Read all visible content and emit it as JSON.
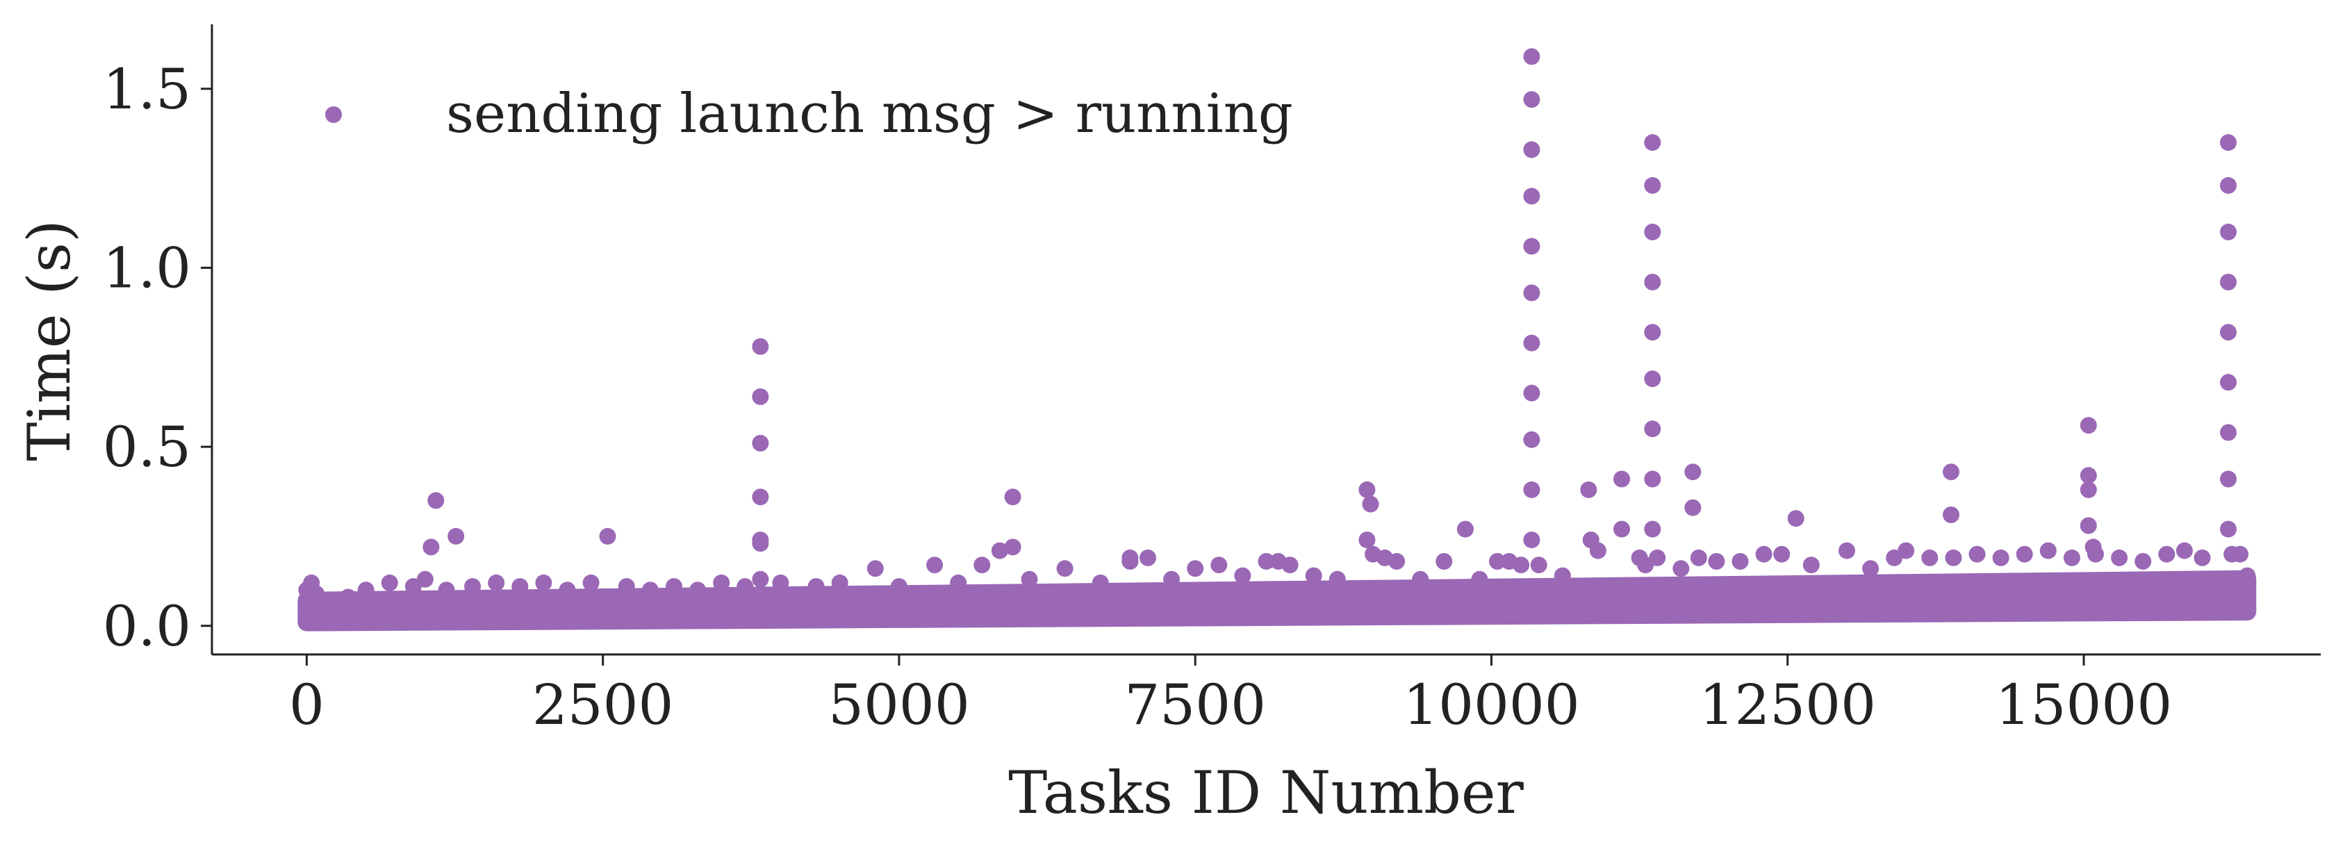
{
  "chart_data": {
    "type": "scatter",
    "xlabel": "Tasks ID Number",
    "ylabel": "Time (s)",
    "xlim": [
      -800,
      17000
    ],
    "ylim": [
      -0.08,
      1.68
    ],
    "xticks": [
      0,
      2500,
      5000,
      7500,
      10000,
      12500,
      15000
    ],
    "xtick_labels": [
      "0",
      "2500",
      "5000",
      "7500",
      "10000",
      "12500",
      "15000"
    ],
    "yticks": [
      0.0,
      0.5,
      1.0,
      1.5
    ],
    "ytick_labels": [
      "0.0",
      "0.5",
      "1.0",
      "1.5"
    ],
    "grid": false,
    "legend_position": "top-left",
    "series": [
      {
        "name": "sending launch msg > running",
        "color": "#9a68b5",
        "band": {
          "x_start": 0,
          "x_end": 16380,
          "lower_start": 0.01,
          "lower_end": 0.04,
          "upper_start": 0.07,
          "upper_end": 0.13
        },
        "points": [
          [
            0,
            0.1
          ],
          [
            40,
            0.12
          ],
          [
            80,
            0.09
          ],
          [
            200,
            0.06
          ],
          [
            350,
            0.08
          ],
          [
            500,
            0.1
          ],
          [
            700,
            0.12
          ],
          [
            900,
            0.11
          ],
          [
            1000,
            0.13
          ],
          [
            1050,
            0.22
          ],
          [
            1090,
            0.35
          ],
          [
            1180,
            0.1
          ],
          [
            1260,
            0.25
          ],
          [
            1400,
            0.11
          ],
          [
            1600,
            0.12
          ],
          [
            1800,
            0.11
          ],
          [
            2000,
            0.12
          ],
          [
            2200,
            0.1
          ],
          [
            2400,
            0.12
          ],
          [
            2540,
            0.25
          ],
          [
            2700,
            0.11
          ],
          [
            2900,
            0.1
          ],
          [
            3100,
            0.11
          ],
          [
            3300,
            0.1
          ],
          [
            3500,
            0.12
          ],
          [
            3700,
            0.11
          ],
          [
            3830,
            0.78
          ],
          [
            3830,
            0.64
          ],
          [
            3830,
            0.51
          ],
          [
            3830,
            0.36
          ],
          [
            3830,
            0.24
          ],
          [
            3830,
            0.23
          ],
          [
            3830,
            0.13
          ],
          [
            4000,
            0.12
          ],
          [
            4300,
            0.11
          ],
          [
            4500,
            0.12
          ],
          [
            4800,
            0.16
          ],
          [
            5000,
            0.11
          ],
          [
            5300,
            0.17
          ],
          [
            5500,
            0.12
          ],
          [
            5700,
            0.17
          ],
          [
            5850,
            0.21
          ],
          [
            5960,
            0.22
          ],
          [
            5960,
            0.36
          ],
          [
            6100,
            0.13
          ],
          [
            6400,
            0.16
          ],
          [
            6700,
            0.12
          ],
          [
            6950,
            0.18
          ],
          [
            6950,
            0.19
          ],
          [
            7100,
            0.19
          ],
          [
            7300,
            0.13
          ],
          [
            7500,
            0.16
          ],
          [
            7700,
            0.17
          ],
          [
            7900,
            0.14
          ],
          [
            8100,
            0.18
          ],
          [
            8200,
            0.18
          ],
          [
            8300,
            0.17
          ],
          [
            8500,
            0.14
          ],
          [
            8700,
            0.13
          ],
          [
            8950,
            0.38
          ],
          [
            8980,
            0.34
          ],
          [
            8950,
            0.24
          ],
          [
            9000,
            0.2
          ],
          [
            9100,
            0.19
          ],
          [
            9200,
            0.18
          ],
          [
            9400,
            0.13
          ],
          [
            9600,
            0.18
          ],
          [
            9780,
            0.27
          ],
          [
            9900,
            0.13
          ],
          [
            10050,
            0.18
          ],
          [
            10150,
            0.18
          ],
          [
            10250,
            0.17
          ],
          [
            10340,
            1.59
          ],
          [
            10340,
            1.47
          ],
          [
            10340,
            1.33
          ],
          [
            10340,
            1.2
          ],
          [
            10340,
            1.06
          ],
          [
            10340,
            0.93
          ],
          [
            10340,
            0.79
          ],
          [
            10340,
            0.65
          ],
          [
            10340,
            0.52
          ],
          [
            10340,
            0.38
          ],
          [
            10340,
            0.24
          ],
          [
            10400,
            0.17
          ],
          [
            10600,
            0.14
          ],
          [
            10820,
            0.38
          ],
          [
            10840,
            0.24
          ],
          [
            10900,
            0.21
          ],
          [
            11100,
            0.41
          ],
          [
            11100,
            0.27
          ],
          [
            11250,
            0.19
          ],
          [
            11300,
            0.17
          ],
          [
            11360,
            1.35
          ],
          [
            11360,
            1.23
          ],
          [
            11360,
            1.1
          ],
          [
            11360,
            0.96
          ],
          [
            11360,
            0.82
          ],
          [
            11360,
            0.69
          ],
          [
            11360,
            0.55
          ],
          [
            11360,
            0.41
          ],
          [
            11360,
            0.27
          ],
          [
            11400,
            0.19
          ],
          [
            11600,
            0.16
          ],
          [
            11700,
            0.43
          ],
          [
            11700,
            0.33
          ],
          [
            11750,
            0.19
          ],
          [
            11900,
            0.18
          ],
          [
            12100,
            0.18
          ],
          [
            12300,
            0.2
          ],
          [
            12450,
            0.2
          ],
          [
            12570,
            0.3
          ],
          [
            12700,
            0.17
          ],
          [
            13000,
            0.21
          ],
          [
            13200,
            0.16
          ],
          [
            13400,
            0.19
          ],
          [
            13500,
            0.21
          ],
          [
            13700,
            0.19
          ],
          [
            13880,
            0.43
          ],
          [
            13880,
            0.31
          ],
          [
            13900,
            0.19
          ],
          [
            14100,
            0.2
          ],
          [
            14300,
            0.19
          ],
          [
            14500,
            0.2
          ],
          [
            14700,
            0.21
          ],
          [
            14900,
            0.19
          ],
          [
            15040,
            0.56
          ],
          [
            15040,
            0.42
          ],
          [
            15040,
            0.38
          ],
          [
            15040,
            0.28
          ],
          [
            15080,
            0.22
          ],
          [
            15100,
            0.2
          ],
          [
            15300,
            0.19
          ],
          [
            15500,
            0.18
          ],
          [
            15700,
            0.2
          ],
          [
            15850,
            0.21
          ],
          [
            16000,
            0.19
          ],
          [
            16220,
            1.35
          ],
          [
            16220,
            1.23
          ],
          [
            16220,
            1.1
          ],
          [
            16220,
            0.96
          ],
          [
            16220,
            0.82
          ],
          [
            16220,
            0.68
          ],
          [
            16220,
            0.54
          ],
          [
            16220,
            0.41
          ],
          [
            16220,
            0.27
          ],
          [
            16250,
            0.2
          ],
          [
            16320,
            0.2
          ],
          [
            16380,
            0.14
          ],
          [
            16380,
            0.08
          ],
          [
            16380,
            0.04
          ]
        ]
      }
    ]
  }
}
